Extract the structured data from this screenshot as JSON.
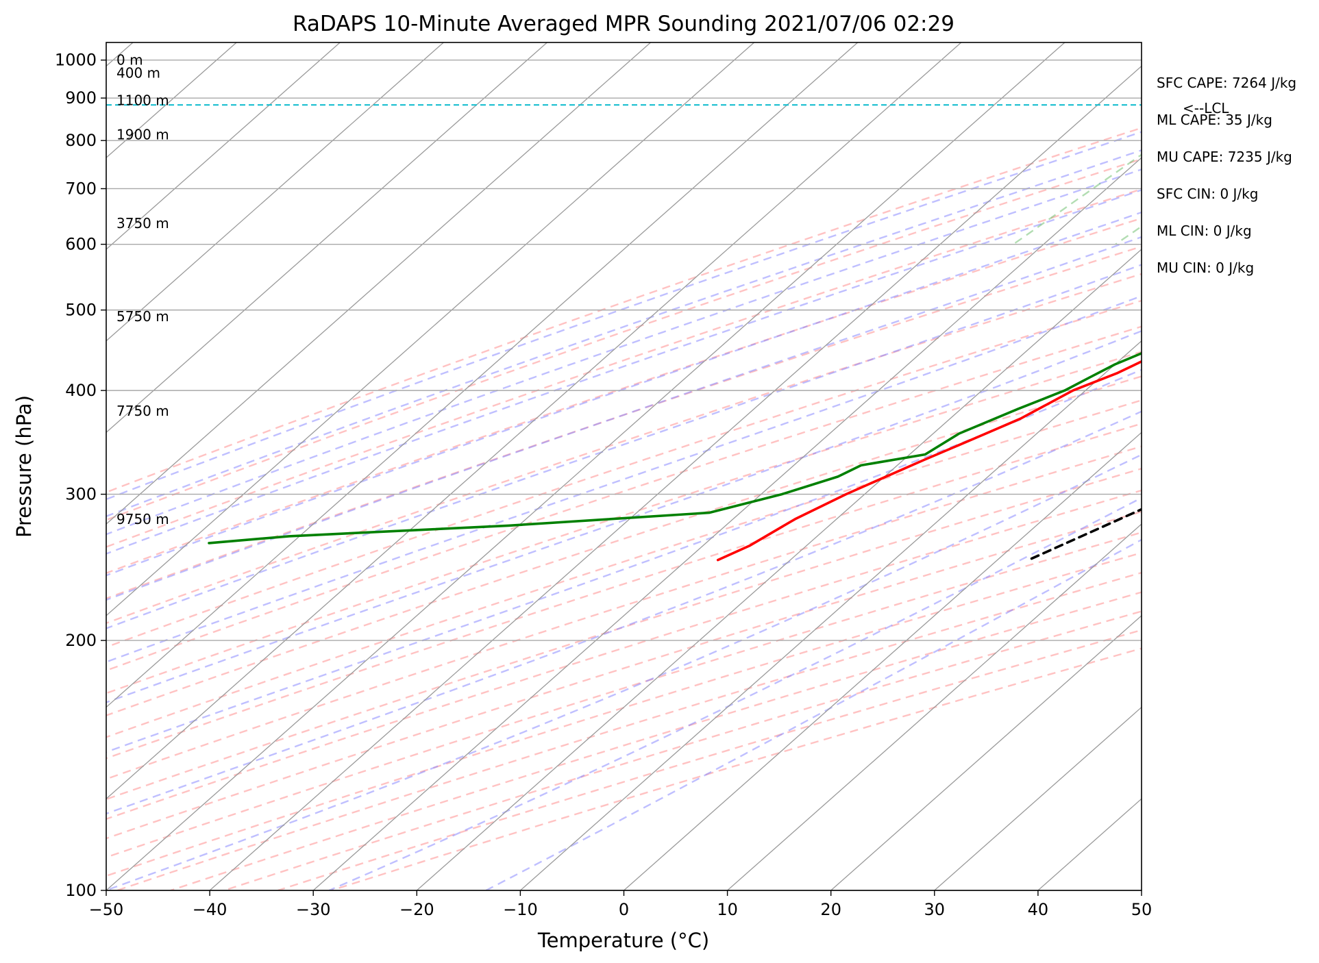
{
  "chart_data": {
    "type": "line",
    "subtype": "skew-t log-p sounding",
    "title": "RaDAPS 10-Minute Averaged MPR Sounding 2021/07/06 02:29",
    "xlabel": "Temperature (°C)",
    "ylabel": "Pressure (hPa)",
    "xlim": [
      -50,
      50
    ],
    "ylim": [
      1050,
      100
    ],
    "y_scale": "log",
    "x_ticks": [
      "−50",
      "−40",
      "−30",
      "−20",
      "−10",
      "0",
      "10",
      "20",
      "30",
      "40",
      "50"
    ],
    "y_ticks": [
      "100",
      "200",
      "300",
      "400",
      "500",
      "600",
      "700",
      "800",
      "900",
      "1000"
    ],
    "grid": true,
    "height_labels": [
      {
        "label": "9750 m",
        "p": 280
      },
      {
        "label": "7750 m",
        "p": 378
      },
      {
        "label": "5750 m",
        "p": 491
      },
      {
        "label": "3750 m",
        "p": 636
      },
      {
        "label": "1900 m",
        "p": 813
      },
      {
        "label": "1100 m",
        "p": 894
      },
      {
        "label": "400 m",
        "p": 965
      },
      {
        "label": "0 m",
        "p": 1000
      }
    ],
    "stats": [
      "SFC CAPE: 7264 J/kg",
      "ML CAPE: 35 J/kg",
      "MU CAPE: 7235 J/kg",
      "SFC CIN: 0 J/kg",
      "ML CIN: 0 J/kg",
      "MU CIN: 0 J/kg"
    ],
    "lcl": {
      "label": "<--LCL",
      "p": 883
    },
    "series": [
      {
        "key": "temperature",
        "color": "#ff0000",
        "points": [
          [
            1000,
            28.0
          ],
          [
            998,
            20.0
          ],
          [
            990,
            16.0
          ],
          [
            980,
            16.8
          ],
          [
            950,
            15.5
          ],
          [
            900,
            14.4
          ],
          [
            850,
            13.0
          ],
          [
            800,
            11.0
          ],
          [
            750,
            9.0
          ],
          [
            700,
            7.3
          ],
          [
            650,
            5.0
          ],
          [
            600,
            2.5
          ],
          [
            550,
            0.0
          ],
          [
            500,
            -2.2
          ],
          [
            470,
            -4.5
          ],
          [
            450,
            -6.5
          ],
          [
            420,
            -8.8
          ],
          [
            400,
            -11.2
          ],
          [
            370,
            -13.2
          ],
          [
            350,
            -15.5
          ],
          [
            330,
            -18.0
          ],
          [
            310,
            -20.5
          ],
          [
            300,
            -21.8
          ],
          [
            280,
            -24.0
          ],
          [
            260,
            -25.5
          ],
          [
            250,
            -27.0
          ]
        ]
      },
      {
        "key": "dewpoint",
        "color": "#008000",
        "points": [
          [
            1000,
            20.0
          ],
          [
            998,
            15.0
          ],
          [
            990,
            2.2
          ],
          [
            980,
            1.8
          ],
          [
            950,
            1.5
          ],
          [
            900,
            0.5
          ],
          [
            870,
            -0.5
          ],
          [
            850,
            -1.5
          ],
          [
            800,
            1.3
          ],
          [
            750,
            3.5
          ],
          [
            700,
            5.6
          ],
          [
            680,
            6.2
          ],
          [
            660,
            6.0
          ],
          [
            630,
            3.0
          ],
          [
            600,
            0.5
          ],
          [
            590,
            -1.0
          ],
          [
            560,
            -1.5
          ],
          [
            530,
            -3.0
          ],
          [
            500,
            -5.0
          ],
          [
            480,
            -6.5
          ],
          [
            450,
            -8.0
          ],
          [
            430,
            -10.0
          ],
          [
            415,
            -11.0
          ],
          [
            400,
            -12.0
          ],
          [
            380,
            -14.5
          ],
          [
            355,
            -17.5
          ],
          [
            335,
            -18.5
          ],
          [
            325,
            -23.5
          ],
          [
            315,
            -24.5
          ],
          [
            300,
            -28.0
          ],
          [
            285,
            -33.0
          ],
          [
            275,
            -51.0
          ],
          [
            267,
            -71.0
          ],
          [
            262,
            -78.0
          ]
        ]
      },
      {
        "key": "parcel",
        "color": "#000000",
        "points": [
          [
            1000,
            28.0
          ],
          [
            950,
            25.5
          ],
          [
            883,
            22.2
          ],
          [
            850,
            22.8
          ],
          [
            800,
            23.5
          ],
          [
            750,
            24.0
          ],
          [
            700,
            24.2
          ],
          [
            650,
            24.2
          ],
          [
            600,
            24.0
          ],
          [
            550,
            23.5
          ],
          [
            500,
            22.5
          ],
          [
            450,
            20.8
          ],
          [
            400,
            18.5
          ],
          [
            350,
            15.0
          ],
          [
            300,
            10.0
          ],
          [
            250,
            3.0
          ]
        ]
      }
    ]
  }
}
